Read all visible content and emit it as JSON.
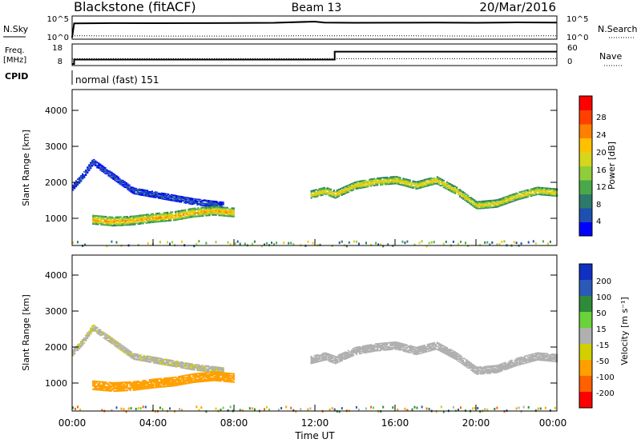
{
  "header": {
    "station": "Blackstone (fitACF)",
    "beam": "Beam 13",
    "date": "20/Mar/2016"
  },
  "noise_panel": {
    "left_label": "N.Sky",
    "right_label": "N.Search",
    "left_ticks": [
      "10^5",
      "10^0"
    ],
    "right_ticks": [
      "10^5",
      "10^0"
    ]
  },
  "freq_panel": {
    "left_label": "Freq.",
    "left_unit": "[MHz]",
    "right_label": "Nave",
    "left_ticks": [
      "18",
      "8"
    ],
    "right_ticks": [
      "60",
      "0"
    ]
  },
  "cpid_panel": {
    "label": "CPID",
    "value": "normal (fast) 151"
  },
  "power_panel": {
    "ylabel": "Slant Range [km]",
    "yticks": [
      "1000",
      "2000",
      "3000",
      "4000"
    ],
    "colorbar_title": "Power [dB]",
    "colorbar_ticks": [
      "4",
      "8",
      "12",
      "16",
      "20",
      "24",
      "28"
    ],
    "colorbar_colors": [
      "#0000ff",
      "#1f4fb0",
      "#2d7a6a",
      "#4aa84a",
      "#8fce3a",
      "#d6d61e",
      "#ffc000",
      "#ff8000",
      "#ff4000",
      "#ff0000"
    ]
  },
  "velocity_panel": {
    "ylabel": "Slant Range [km]",
    "yticks": [
      "1000",
      "2000",
      "3000",
      "4000"
    ],
    "colorbar_title": "Velocity [m s⁻¹]",
    "colorbar_ticks": [
      "200",
      "100",
      "50",
      "15",
      "-15",
      "-50",
      "-100",
      "-200"
    ],
    "colorbar_colors": [
      "#1030c0",
      "#2a5ab8",
      "#2f8a3a",
      "#6ad23a",
      "#b0b0b0",
      "#d0d000",
      "#ffa000",
      "#ff6000",
      "#ff0000"
    ]
  },
  "xaxis": {
    "label": "Time UT",
    "ticks": [
      "00:00",
      "04:00",
      "08:00",
      "12:00",
      "16:00",
      "20:00",
      "00:00"
    ]
  },
  "chart_data": [
    {
      "type": "line",
      "panel": "noise",
      "x_unit": "hours UT",
      "xlim": [
        0,
        24
      ],
      "ylog": true,
      "series": [
        {
          "name": "N.Sky",
          "style": "solid",
          "x": [
            0,
            0.1,
            2,
            4,
            6,
            8,
            10,
            12,
            12.5,
            14,
            16,
            18,
            20,
            22,
            24
          ],
          "y": [
            1,
            5000,
            6000,
            5500,
            6000,
            6500,
            7000,
            15000,
            8000,
            7000,
            7500,
            8000,
            7000,
            9000,
            8000
          ]
        },
        {
          "name": "N.Search",
          "style": "dotted",
          "x": [
            0,
            4,
            8,
            12,
            16,
            20,
            24
          ],
          "y": [
            3,
            2.5,
            2.5,
            3,
            3,
            2.5,
            3
          ]
        }
      ]
    },
    {
      "type": "line",
      "panel": "freq",
      "x_unit": "hours UT",
      "xlim": [
        0,
        24
      ],
      "series": [
        {
          "name": "Freq.",
          "style": "solid",
          "x": [
            0,
            0.1,
            12.99,
            13,
            24
          ],
          "y": [
            8,
            10.5,
            10.5,
            15,
            15
          ]
        },
        {
          "name": "Nave",
          "style": "dotted",
          "x": [
            0,
            24
          ],
          "y": [
            11,
            11
          ]
        }
      ]
    },
    {
      "type": "heatmap",
      "panel": "power",
      "x_unit": "hours UT",
      "y_unit": "km",
      "xlim": [
        0,
        24
      ],
      "ylim": [
        180,
        4500
      ],
      "zlim": [
        0,
        30
      ],
      "features": [
        {
          "name": "morning-upper-band",
          "x": [
            0,
            0.5,
            1,
            2,
            3,
            4,
            5,
            6,
            7.5
          ],
          "y": [
            1800,
            2100,
            2500,
            2100,
            1700,
            1600,
            1500,
            1400,
            1300
          ],
          "width_km": 180,
          "z": 5
        },
        {
          "name": "morning-lower-band",
          "x": [
            1,
            2,
            3,
            4,
            5,
            6,
            7,
            8
          ],
          "y": [
            900,
            850,
            880,
            950,
            1000,
            1100,
            1150,
            1100
          ],
          "width_km": 260,
          "z": 22
        },
        {
          "name": "afternoon-band",
          "x": [
            11.8,
            12.5,
            13,
            14,
            15,
            16,
            17,
            18,
            19,
            20,
            21,
            22,
            23,
            24
          ],
          "y": [
            1600,
            1700,
            1600,
            1850,
            1950,
            2000,
            1850,
            2000,
            1700,
            1300,
            1350,
            1550,
            1700,
            1650
          ],
          "width_km": 220,
          "z": 20
        }
      ]
    },
    {
      "type": "heatmap",
      "panel": "velocity",
      "x_unit": "hours UT",
      "y_unit": "km",
      "xlim": [
        0,
        24
      ],
      "ylim": [
        180,
        4500
      ],
      "zlim": [
        -250,
        250
      ],
      "features": [
        {
          "name": "morning-upper-band",
          "x": [
            0,
            0.5,
            1,
            2,
            3,
            4,
            5,
            6,
            7.5
          ],
          "y": [
            1800,
            2100,
            2500,
            2100,
            1700,
            1600,
            1500,
            1400,
            1300
          ],
          "width_km": 180,
          "z": -10
        },
        {
          "name": "morning-lower-band",
          "x": [
            1,
            2,
            3,
            4,
            5,
            6,
            7,
            8
          ],
          "y": [
            900,
            850,
            880,
            950,
            1000,
            1100,
            1150,
            1100
          ],
          "width_km": 260,
          "z": -60
        },
        {
          "name": "afternoon-band",
          "x": [
            11.8,
            12.5,
            13,
            14,
            15,
            16,
            17,
            18,
            19,
            20,
            21,
            22,
            23,
            24
          ],
          "y": [
            1600,
            1700,
            1600,
            1850,
            1950,
            2000,
            1850,
            2000,
            1700,
            1300,
            1350,
            1550,
            1700,
            1650
          ],
          "width_km": 220,
          "z": 0
        }
      ]
    }
  ]
}
